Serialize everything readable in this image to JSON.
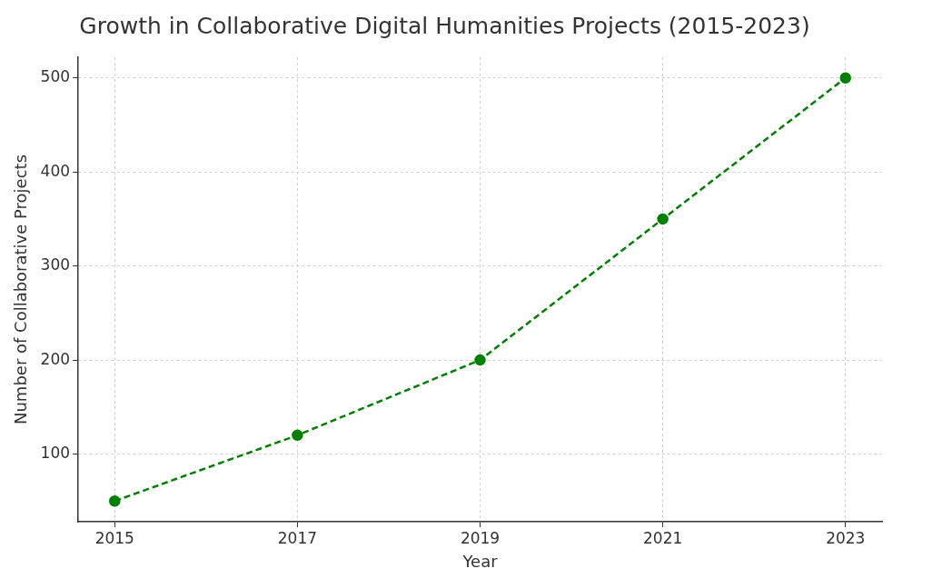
{
  "chart_data": {
    "type": "line",
    "title": "Growth in Collaborative Digital Humanities Projects (2015-2023)",
    "xlabel": "Year",
    "ylabel": "Number of Collaborative Projects",
    "x": [
      2015,
      2017,
      2019,
      2021,
      2023
    ],
    "series": [
      {
        "color": "#008000",
        "values": [
          50,
          120,
          200,
          350,
          500
        ]
      }
    ],
    "xlim": [
      2014.6,
      2023.4
    ],
    "xticks": [
      2015,
      2017,
      2019,
      2021,
      2023
    ],
    "ylim": [
      28,
      522
    ],
    "yticks": [
      100,
      200,
      300,
      400,
      500
    ],
    "grid": true,
    "legend": false,
    "marker": "circle",
    "line_style": "dashed"
  }
}
